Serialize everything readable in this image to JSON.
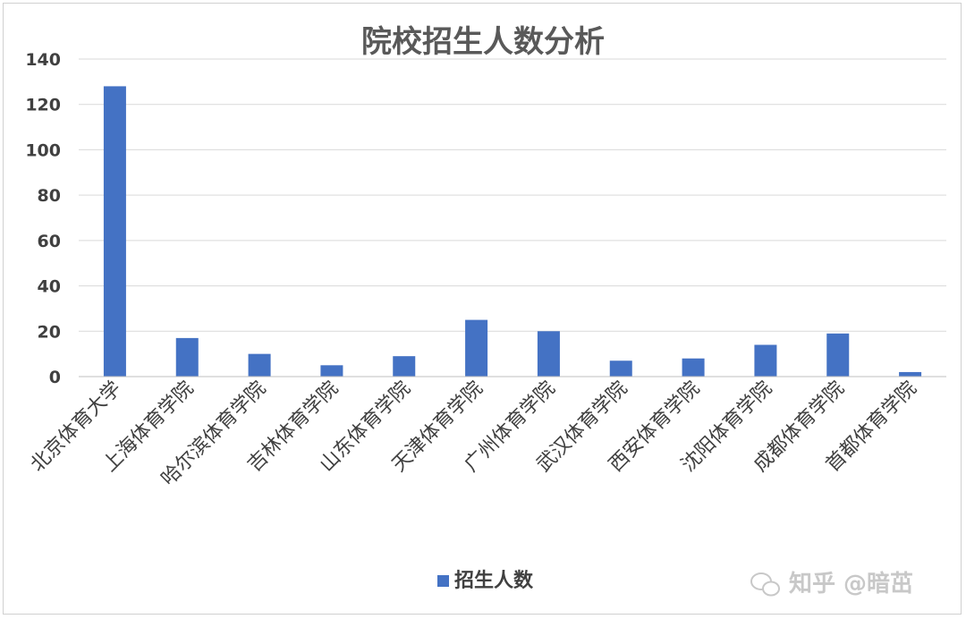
{
  "chart_data": {
    "type": "bar",
    "title": "院校招生人数分析",
    "categories": [
      "北京体育大学",
      "上海体育学院",
      "哈尔滨体育学院",
      "吉林体育学院",
      "山东体育学院",
      "天津体育学院",
      "广州体育学院",
      "武汉体育学院",
      "西安体育学院",
      "沈阳体育学院",
      "成都体育学院",
      "首都体育学院"
    ],
    "series": [
      {
        "name": "招生人数",
        "values": [
          128,
          17,
          10,
          5,
          9,
          25,
          20,
          7,
          8,
          14,
          19,
          2
        ],
        "color": "#4472C4"
      }
    ],
    "ylim": [
      0,
      140
    ],
    "yticks": [
      "0",
      "20",
      "40",
      "60",
      "80",
      "100",
      "120",
      "140"
    ],
    "grid": true,
    "legend": "bottom"
  },
  "watermark": {
    "text": "知乎 @暗茁"
  }
}
